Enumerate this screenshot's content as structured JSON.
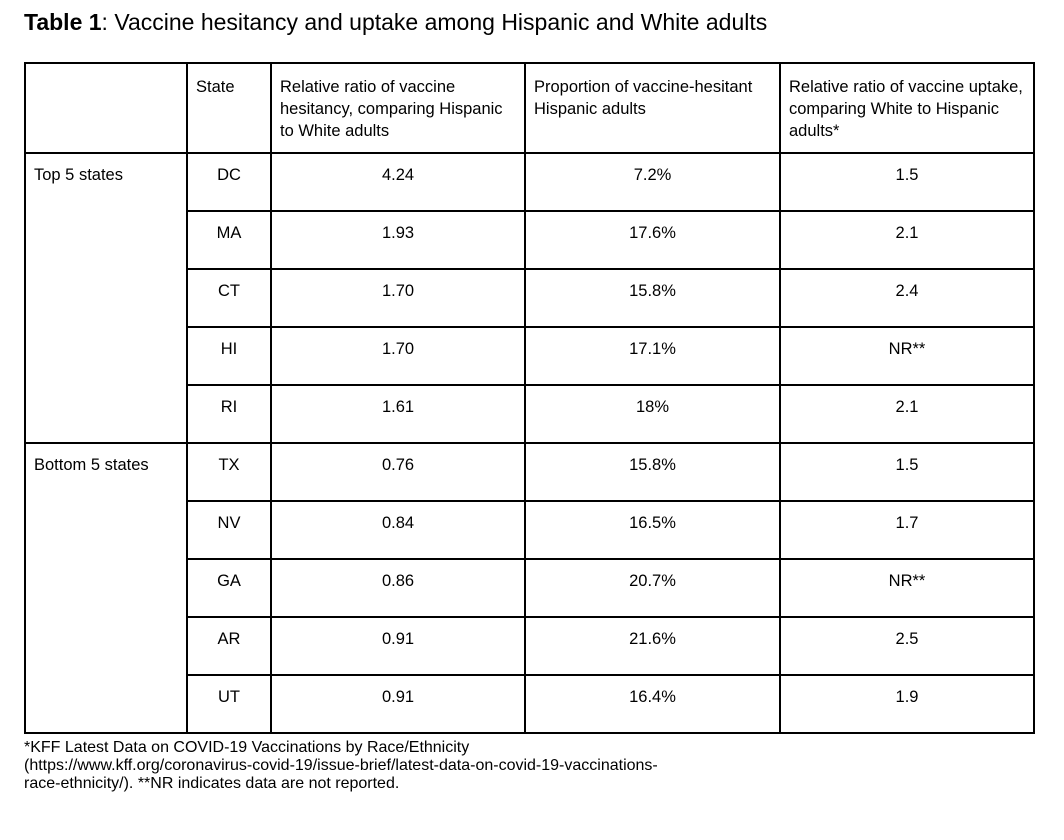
{
  "title": {
    "label": "Table 1",
    "text": ": Vaccine hesitancy and uptake among Hispanic and White adults"
  },
  "table": {
    "columns": [
      "",
      "State",
      "Relative ratio of vaccine hesitancy, comparing Hispanic to White adults",
      "Proportion of vaccine-hesitant Hispanic adults",
      "Relative ratio of vaccine uptake, comparing White to Hispanic adults*"
    ],
    "groups": [
      {
        "label": "Top 5 states",
        "rows": [
          {
            "state": "DC",
            "hesitancy_ratio": "4.24",
            "proportion": "7.2%",
            "uptake_ratio": "1.5"
          },
          {
            "state": "MA",
            "hesitancy_ratio": "1.93",
            "proportion": "17.6%",
            "uptake_ratio": "2.1"
          },
          {
            "state": "CT",
            "hesitancy_ratio": "1.70",
            "proportion": "15.8%",
            "uptake_ratio": "2.4"
          },
          {
            "state": "HI",
            "hesitancy_ratio": "1.70",
            "proportion": "17.1%",
            "uptake_ratio": "NR**"
          },
          {
            "state": "RI",
            "hesitancy_ratio": "1.61",
            "proportion": "18%",
            "uptake_ratio": "2.1"
          }
        ]
      },
      {
        "label": "Bottom 5 states",
        "rows": [
          {
            "state": "TX",
            "hesitancy_ratio": "0.76",
            "proportion": "15.8%",
            "uptake_ratio": "1.5"
          },
          {
            "state": "NV",
            "hesitancy_ratio": "0.84",
            "proportion": "16.5%",
            "uptake_ratio": "1.7"
          },
          {
            "state": "GA",
            "hesitancy_ratio": "0.86",
            "proportion": "20.7%",
            "uptake_ratio": "NR**"
          },
          {
            "state": "AR",
            "hesitancy_ratio": "0.91",
            "proportion": "21.6%",
            "uptake_ratio": "2.5"
          },
          {
            "state": "UT",
            "hesitancy_ratio": "0.91",
            "proportion": "16.4%",
            "uptake_ratio": "1.9"
          }
        ]
      }
    ]
  },
  "footnote": {
    "lines": [
      "*KFF Latest Data on COVID-19 Vaccinations by Race/Ethnicity",
      "(https://www.kff.org/coronavirus-covid-19/issue-brief/latest-data-on-covid-19-vaccinations-",
      "race-ethnicity/). **NR indicates data are not reported."
    ]
  },
  "colors": {
    "text": "#000000",
    "border": "#000000",
    "background": "#ffffff"
  }
}
